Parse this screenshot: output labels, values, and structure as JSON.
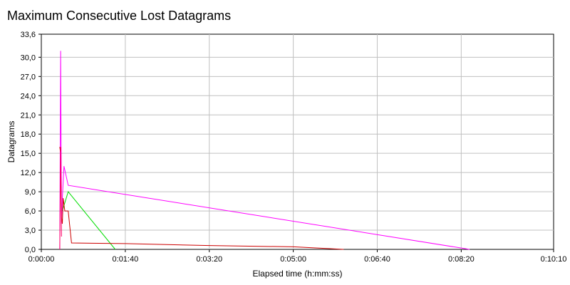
{
  "chart_data": {
    "type": "line",
    "title": "Maximum Consecutive Lost Datagrams",
    "xlabel": "Elapsed time (h:mm:ss)",
    "ylabel": "Datagrams",
    "xlim": [
      0,
      610
    ],
    "ylim": [
      0,
      33.6
    ],
    "x_ticks": [
      0,
      100,
      200,
      300,
      400,
      500,
      610
    ],
    "x_tick_labels": [
      "0:00:00",
      "0:01:40",
      "0:03:20",
      "0:05:00",
      "0:06:40",
      "0:08:20",
      "0:10:10"
    ],
    "y_ticks": [
      0,
      3,
      6,
      9,
      12,
      15,
      18,
      21,
      24,
      27,
      30,
      33.6
    ],
    "y_tick_labels": [
      "0,0",
      "3,0",
      "6,0",
      "9,0",
      "12,0",
      "15,0",
      "18,0",
      "21,0",
      "24,0",
      "27,0",
      "30,0",
      "33,6"
    ],
    "grid": true,
    "series": [
      {
        "color": "#ff00ff",
        "x": [
          22,
          23,
          24,
          25,
          27,
          32,
          510
        ],
        "y": [
          0,
          31,
          4,
          8,
          13,
          10,
          0
        ]
      },
      {
        "color": "#00dd00",
        "x": [
          25,
          32,
          88
        ],
        "y": [
          6,
          9,
          0
        ]
      },
      {
        "color": "#cc0000",
        "x": [
          22,
          23,
          24,
          25,
          26,
          28,
          30,
          32,
          36,
          100,
          200,
          300,
          360
        ],
        "y": [
          16,
          15,
          5,
          4,
          8,
          6,
          6,
          6,
          1,
          0.9,
          0.6,
          0.4,
          0
        ]
      },
      {
        "color": "#ff0066",
        "x": [
          22,
          23,
          24
        ],
        "y": [
          0,
          16,
          2
        ]
      }
    ]
  }
}
